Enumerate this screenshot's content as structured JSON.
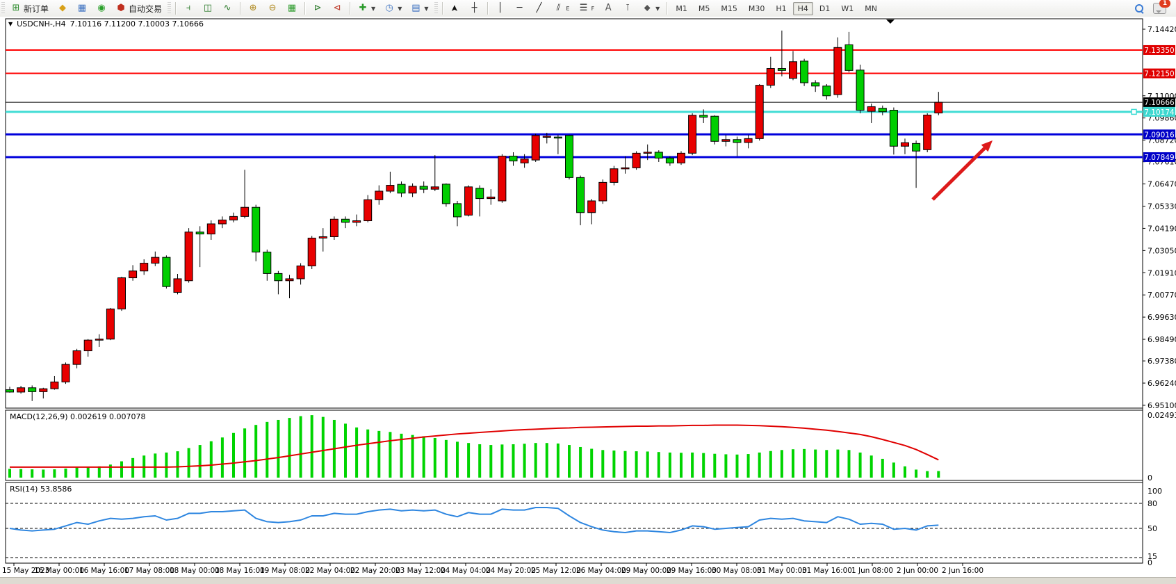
{
  "toolbar": {
    "new_order_label": "新订单",
    "autotrading_label": "自动交易",
    "timeframes": [
      "M1",
      "M5",
      "M15",
      "M30",
      "H1",
      "H4",
      "D1",
      "W1",
      "MN"
    ],
    "active_timeframe": "H4",
    "notification_count": "1"
  },
  "chart": {
    "symbol_period": "USDCNH-,H4",
    "ohlc_text": "7.10116 7.11200 7.10003 7.10666"
  },
  "macd_panel": {
    "label": "MACD(12,26,9) 0.002619 0.007078"
  },
  "rsi_panel": {
    "label": "RSI(14) 53.8586"
  },
  "chart_data": {
    "type": "candlestick",
    "symbol": "USDCNH-",
    "timeframe": "H4",
    "current_bar": {
      "open": "7.10116",
      "high": "7.11200",
      "low": "7.10003",
      "close": "7.10666"
    },
    "colors": {
      "bull": "#E80000",
      "bear": "#00CE00",
      "wick": "#000000",
      "macd_hist": "#00D400",
      "macd_signal": "#E00000",
      "rsi_line": "#2E86E0",
      "arrow": "#DD1A1A"
    },
    "price_axis_ticks": [
      "7.14420",
      "7.11000",
      "7.09860",
      "7.08720",
      "7.07610",
      "7.06470",
      "7.05330",
      "7.04190",
      "7.03050",
      "7.01910",
      "7.00770",
      "6.99630",
      "6.98490",
      "6.97380",
      "6.96240",
      "6.95100"
    ],
    "time_axis_labels": [
      "15 May 2023",
      "16 May 00:00",
      "16 May 16:00",
      "17 May 08:00",
      "18 May 00:00",
      "18 May 16:00",
      "19 May 08:00",
      "22 May 04:00",
      "22 May 20:00",
      "23 May 12:00",
      "24 May 04:00",
      "24 May 20:00",
      "25 May 12:00",
      "26 May 04:00",
      "29 May 00:00",
      "29 May 16:00",
      "30 May 08:00",
      "31 May 00:00",
      "31 May 16:00",
      "1 Jun 08:00",
      "2 Jun 00:00",
      "2 Jun 16:00"
    ],
    "hlines": [
      {
        "price": 7.1335,
        "badge": "7.13350",
        "color": "#FF0000",
        "badge_bg": "#E00000",
        "width": 2
      },
      {
        "price": 7.1215,
        "badge": "7.12150",
        "color": "#FF0000",
        "badge_bg": "#E00000",
        "width": 2
      },
      {
        "price": 7.10666,
        "badge": "7.10666",
        "color": "#000000",
        "badge_bg": "#000000",
        "width": 1
      },
      {
        "price": 7.10174,
        "badge": "7.10174",
        "color": "#40DCD4",
        "badge_bg": "#3ED8D0",
        "width": 3,
        "handle": true
      },
      {
        "price": 7.09016,
        "badge": "7.09016",
        "color": "#0000DC",
        "badge_bg": "#0000C8",
        "width": 3
      },
      {
        "price": 7.07849,
        "badge": "7.07849",
        "color": "#0000DC",
        "badge_bg": "#0000C8",
        "width": 3
      }
    ],
    "trend_arrow": {
      "from": [
        1342,
        263
      ],
      "to": [
        1428,
        178
      ]
    },
    "candles": [
      [
        6.959,
        6.9605,
        6.9575,
        6.9578
      ],
      [
        6.9578,
        6.961,
        6.957,
        6.96
      ],
      [
        6.96,
        6.9612,
        6.9532,
        6.958
      ],
      [
        6.958,
        6.96,
        6.9545,
        6.9595
      ],
      [
        6.9595,
        6.966,
        6.959,
        6.963
      ],
      [
        6.963,
        6.973,
        6.962,
        6.972
      ],
      [
        6.972,
        6.98,
        6.97,
        6.979
      ],
      [
        6.979,
        6.985,
        6.976,
        6.9845
      ],
      [
        6.9845,
        6.9875,
        6.981,
        6.985
      ],
      [
        6.985,
        7.001,
        6.9845,
        7.0005
      ],
      [
        7.0005,
        7.017,
        6.9995,
        7.0165
      ],
      [
        7.0165,
        7.023,
        7.015,
        7.02
      ],
      [
        7.02,
        7.026,
        7.018,
        7.024
      ],
      [
        7.024,
        7.03,
        7.0225,
        7.027
      ],
      [
        7.027,
        7.028,
        7.011,
        7.012
      ],
      [
        7.009,
        7.0185,
        7.008,
        7.016
      ],
      [
        7.015,
        7.042,
        7.014,
        7.04
      ],
      [
        7.04,
        7.043,
        7.022,
        7.039
      ],
      [
        7.039,
        7.046,
        7.036,
        7.0442
      ],
      [
        7.0442,
        7.048,
        7.042,
        7.0462
      ],
      [
        7.0462,
        7.05,
        7.045,
        7.048
      ],
      [
        7.048,
        7.072,
        7.047,
        7.0527
      ],
      [
        7.0527,
        7.054,
        7.025,
        7.0297
      ],
      [
        7.0297,
        7.031,
        7.015,
        7.0187
      ],
      [
        7.0187,
        7.02,
        7.008,
        7.015
      ],
      [
        7.015,
        7.018,
        7.006,
        7.016
      ],
      [
        7.016,
        7.024,
        7.013,
        7.0226
      ],
      [
        7.0226,
        7.038,
        7.021,
        7.0369
      ],
      [
        7.0369,
        7.042,
        7.03,
        7.0376
      ],
      [
        7.0376,
        7.048,
        7.036,
        7.0466
      ],
      [
        7.0466,
        7.048,
        7.042,
        7.045
      ],
      [
        7.045,
        7.049,
        7.043,
        7.0458
      ],
      [
        7.0458,
        7.059,
        7.045,
        7.0566
      ],
      [
        7.0566,
        7.064,
        7.054,
        7.061
      ],
      [
        7.061,
        7.071,
        7.06,
        7.064
      ],
      [
        7.0645,
        7.066,
        7.058,
        7.06
      ],
      [
        7.06,
        7.065,
        7.058,
        7.0635
      ],
      [
        7.0635,
        7.066,
        7.06,
        7.062
      ],
      [
        7.062,
        7.0795,
        7.061,
        7.0632
      ],
      [
        7.0646,
        7.065,
        7.053,
        7.0546
      ],
      [
        7.0546,
        7.056,
        7.043,
        7.0478
      ],
      [
        7.0487,
        7.064,
        7.048,
        7.0632
      ],
      [
        7.0625,
        7.064,
        7.048,
        7.0572
      ],
      [
        7.0572,
        7.062,
        7.054,
        7.058
      ],
      [
        7.056,
        7.08,
        7.055,
        7.079
      ],
      [
        7.079,
        7.081,
        7.074,
        7.0765
      ],
      [
        7.0755,
        7.08,
        7.073,
        7.0775
      ],
      [
        7.077,
        7.0905,
        7.076,
        7.0896
      ],
      [
        7.089,
        7.091,
        7.0855,
        7.0892
      ],
      [
        7.0888,
        7.09,
        7.08,
        7.0885
      ],
      [
        7.0896,
        7.09,
        7.067,
        7.068
      ],
      [
        7.068,
        7.069,
        7.0435,
        7.05
      ],
      [
        7.05,
        7.057,
        7.044,
        7.056
      ],
      [
        7.056,
        7.067,
        7.0545,
        7.0655
      ],
      [
        7.0655,
        7.074,
        7.064,
        7.0725
      ],
      [
        7.0725,
        7.079,
        7.07,
        7.073
      ],
      [
        7.073,
        7.0815,
        7.072,
        7.0805
      ],
      [
        7.0805,
        7.085,
        7.077,
        7.081
      ],
      [
        7.081,
        7.082,
        7.076,
        7.078
      ],
      [
        7.078,
        7.079,
        7.074,
        7.0755
      ],
      [
        7.0755,
        7.0815,
        7.0745,
        7.0805
      ],
      [
        7.0805,
        7.101,
        7.0795,
        7.1
      ],
      [
        7.1,
        7.103,
        7.096,
        7.099
      ],
      [
        7.0995,
        7.1,
        7.085,
        7.0866
      ],
      [
        7.0866,
        7.09,
        7.084,
        7.0875
      ],
      [
        7.0875,
        7.089,
        7.079,
        7.086
      ],
      [
        7.086,
        7.09,
        7.083,
        7.088
      ],
      [
        7.088,
        7.116,
        7.087,
        7.1154
      ],
      [
        7.1154,
        7.13,
        7.114,
        7.124
      ],
      [
        7.124,
        7.1435,
        7.12,
        7.123
      ],
      [
        7.119,
        7.133,
        7.118,
        7.1275
      ],
      [
        7.1278,
        7.129,
        7.115,
        7.1167
      ],
      [
        7.1167,
        7.118,
        7.112,
        7.115
      ],
      [
        7.115,
        7.116,
        7.108,
        7.11
      ],
      [
        7.1106,
        7.14,
        7.109,
        7.1348
      ],
      [
        7.1362,
        7.1428,
        7.122,
        7.123
      ],
      [
        7.1232,
        7.126,
        7.101,
        7.1026
      ],
      [
        7.102,
        7.106,
        7.096,
        7.1044
      ],
      [
        7.1036,
        7.105,
        7.1,
        7.1018
      ],
      [
        7.1026,
        7.104,
        7.0798,
        7.0841
      ],
      [
        7.0841,
        7.088,
        7.08,
        7.0859
      ],
      [
        7.0855,
        7.087,
        7.0627,
        7.0816
      ],
      [
        7.0823,
        7.101,
        7.081,
        7.1001
      ],
      [
        7.10116,
        7.112,
        7.10003,
        7.10666
      ]
    ],
    "macd": {
      "label": "MACD(12,26,9) 0.002619 0.007078",
      "axis_ticks": [
        "0.02493",
        "0"
      ],
      "values": [
        0.0035,
        0.0034,
        0.0033,
        0.0032,
        0.0033,
        0.0036,
        0.004,
        0.0042,
        0.0045,
        0.0052,
        0.0065,
        0.0078,
        0.0088,
        0.0096,
        0.01,
        0.0105,
        0.0118,
        0.013,
        0.0145,
        0.016,
        0.0178,
        0.0196,
        0.021,
        0.0222,
        0.023,
        0.0238,
        0.0245,
        0.0249,
        0.0242,
        0.023,
        0.0215,
        0.02,
        0.0192,
        0.0186,
        0.0182,
        0.0175,
        0.017,
        0.0165,
        0.0158,
        0.015,
        0.0143,
        0.0138,
        0.0133,
        0.013,
        0.0132,
        0.0133,
        0.0135,
        0.0138,
        0.0138,
        0.0136,
        0.013,
        0.0122,
        0.0115,
        0.011,
        0.0108,
        0.0106,
        0.0105,
        0.0104,
        0.0102,
        0.01,
        0.0099,
        0.01,
        0.0098,
        0.0095,
        0.0093,
        0.0092,
        0.0094,
        0.01,
        0.0106,
        0.011,
        0.0113,
        0.0114,
        0.0112,
        0.011,
        0.0112,
        0.011,
        0.01,
        0.0088,
        0.0075,
        0.006,
        0.0045,
        0.0032,
        0.0026,
        0.002619
      ],
      "signal": [
        0.0042,
        0.0042,
        0.0042,
        0.0042,
        0.0042,
        0.0042,
        0.0042,
        0.0042,
        0.0042,
        0.0042,
        0.0042,
        0.0042,
        0.0042,
        0.0042,
        0.0042,
        0.0043,
        0.0045,
        0.0047,
        0.005,
        0.0054,
        0.0058,
        0.0063,
        0.0068,
        0.0074,
        0.008,
        0.0087,
        0.0094,
        0.0101,
        0.0108,
        0.0115,
        0.0122,
        0.0129,
        0.0135,
        0.0141,
        0.0147,
        0.0152,
        0.0157,
        0.0162,
        0.0166,
        0.017,
        0.0174,
        0.0177,
        0.018,
        0.0183,
        0.0186,
        0.0189,
        0.0191,
        0.0193,
        0.0195,
        0.0197,
        0.0198,
        0.02,
        0.0201,
        0.0202,
        0.0203,
        0.0204,
        0.0205,
        0.0205,
        0.0206,
        0.0206,
        0.0207,
        0.0208,
        0.0208,
        0.0209,
        0.0209,
        0.0209,
        0.0208,
        0.0207,
        0.0205,
        0.0203,
        0.02,
        0.0197,
        0.0193,
        0.0189,
        0.0184,
        0.0178,
        0.0172,
        0.0163,
        0.0152,
        0.014,
        0.0128,
        0.0112,
        0.0092,
        0.007078
      ]
    },
    "rsi": {
      "label": "RSI(14) 53.8586",
      "axis_ticks": [
        "100",
        "80",
        "50",
        "15",
        "0"
      ],
      "levels": [
        80,
        50,
        15
      ],
      "values": [
        50,
        48,
        47,
        48,
        49,
        53,
        57,
        55,
        59,
        62,
        61,
        62,
        64,
        65,
        60,
        62,
        68,
        68,
        70,
        70,
        71,
        72,
        62,
        58,
        57,
        58,
        60,
        65,
        65,
        68,
        67,
        67,
        70,
        72,
        73,
        71,
        72,
        71,
        72,
        67,
        64,
        69,
        67,
        67,
        73,
        72,
        72,
        75,
        75,
        74,
        65,
        57,
        52,
        48,
        46,
        45,
        47,
        47,
        46,
        45,
        48,
        53,
        52,
        49,
        50,
        51,
        52,
        60,
        62,
        61,
        62,
        59,
        58,
        57,
        64,
        61,
        55,
        56,
        55,
        49,
        50,
        48,
        53,
        53.8586
      ]
    }
  }
}
